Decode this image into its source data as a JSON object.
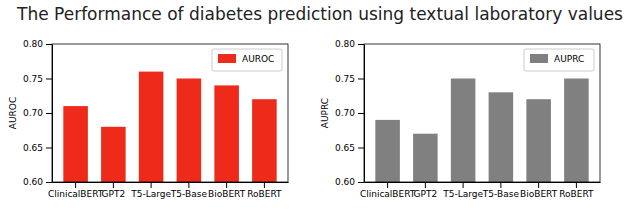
{
  "title": "The Performance of diabetes prediction using textual laboratory values",
  "chart_data": [
    {
      "type": "bar",
      "categories": [
        "ClinicalBERT",
        "GPT2",
        "T5-Large",
        "T5-Base",
        "BioBERT",
        "RoBERT"
      ],
      "series": [
        {
          "name": "AUROC",
          "color": "#ee2a1b",
          "values": [
            0.71,
            0.68,
            0.76,
            0.75,
            0.74,
            0.72
          ]
        }
      ],
      "y_label": "AUROC",
      "ylim": [
        0.6,
        0.8
      ],
      "yticks": [
        {
          "value": 0.6,
          "label": "0.60"
        },
        {
          "value": 0.65,
          "label": "0.65"
        },
        {
          "value": 0.7,
          "label": "0.70"
        },
        {
          "value": 0.75,
          "label": "0.75"
        },
        {
          "value": 0.8,
          "label": "0.80"
        }
      ],
      "legend": "upper right"
    },
    {
      "type": "bar",
      "categories": [
        "ClinicalBERT",
        "GPT2",
        "T5-Large",
        "T5-Base",
        "BioBERT",
        "RoBERT"
      ],
      "series": [
        {
          "name": "AUPRC",
          "color": "#808080",
          "values": [
            0.69,
            0.67,
            0.75,
            0.73,
            0.72,
            0.75
          ]
        }
      ],
      "y_label": "AUPRC",
      "ylim": [
        0.6,
        0.8
      ],
      "yticks": [
        {
          "value": 0.6,
          "label": "0.60"
        },
        {
          "value": 0.65,
          "label": "0.65"
        },
        {
          "value": 0.7,
          "label": "0.70"
        },
        {
          "value": 0.75,
          "label": "0.75"
        },
        {
          "value": 0.8,
          "label": "0.80"
        }
      ],
      "legend": "upper right"
    }
  ]
}
